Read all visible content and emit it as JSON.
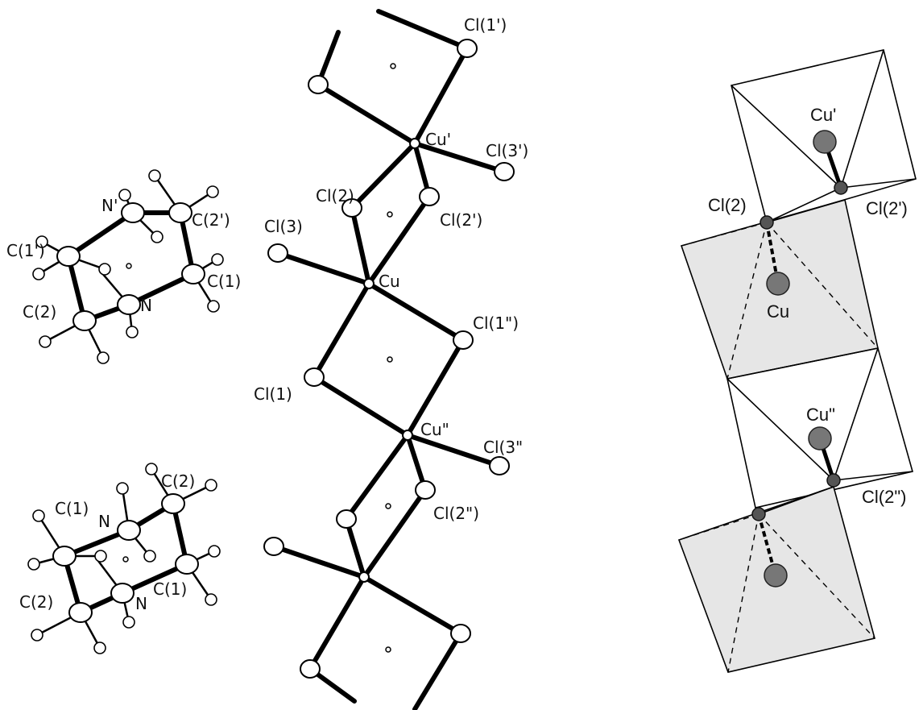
{
  "left_panel": {
    "molecule_top": {
      "labels": [
        "C(1')",
        "N'",
        "C(2')",
        "C(1)",
        "C(2)",
        "N"
      ]
    },
    "molecule_bottom": {
      "labels": [
        "C(1)",
        "N",
        "C(2)",
        "C(2)",
        "N",
        "C(1)"
      ]
    },
    "chain": {
      "labels": [
        "Cl(1')",
        "Cu'",
        "Cl(3')",
        "Cl(2)",
        "Cl(2')",
        "Cl(3)",
        "Cu",
        "Cl(1\")",
        "Cl(1)",
        "Cu\"",
        "Cl(3\"",
        "Cl(2\")"
      ]
    }
  },
  "right_panel": {
    "labels": [
      "Cu'",
      "Cl(2)",
      "Cl(2')",
      "Cu",
      "Cu\"",
      "Cl(2\")"
    ]
  }
}
